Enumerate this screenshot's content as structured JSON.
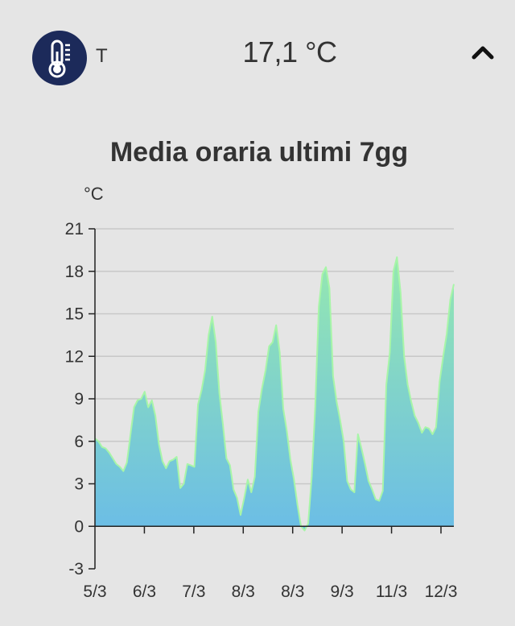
{
  "header": {
    "sensor_icon": "thermometer-icon",
    "sensor_label": "T",
    "current_value": "17,1 °C",
    "collapse_icon": "chevron-up-icon"
  },
  "colors": {
    "avatar_bg": "#1c2a5a",
    "line": "#a8f5a8",
    "fill_top": "#95e8b0",
    "fill_bottom": "#6bbde6",
    "grid": "#c8c8c8",
    "axis": "#222222"
  },
  "chart_data": {
    "type": "area",
    "title": "Media oraria ultimi 7gg",
    "ylabel": "°C",
    "xlabel": "",
    "ylim": [
      -3,
      21
    ],
    "yticks": [
      -3,
      0,
      3,
      6,
      9,
      12,
      15,
      18,
      21
    ],
    "ytick_labels": [
      "-3",
      "0",
      "3",
      "6",
      "9",
      "12",
      "15",
      "18",
      "21"
    ],
    "xtick_labels": [
      "5/3",
      "6/3",
      "7/3",
      "8/3",
      "8/3",
      "9/3",
      "11/3",
      "12/3"
    ],
    "grid": true,
    "series": [
      {
        "values": [
          6.2,
          6.0,
          5.6,
          5.5,
          5.2,
          4.8,
          4.4,
          4.2,
          3.9,
          4.5,
          6.5,
          8.4,
          8.9,
          9.0,
          9.5,
          8.4,
          8.9,
          7.8,
          5.8,
          4.6,
          4.1,
          4.6,
          4.7,
          4.9,
          2.7,
          3.0,
          4.4,
          4.3,
          4.2,
          8.6,
          9.6,
          11.0,
          13.5,
          14.8,
          13.0,
          9.4,
          7.2,
          4.8,
          4.3,
          2.6,
          2.0,
          0.8,
          2.0,
          3.3,
          2.4,
          3.5,
          8.1,
          9.7,
          11.0,
          12.7,
          13.0,
          14.2,
          12.3,
          8.3,
          6.7,
          4.7,
          3.3,
          1.5,
          0.0,
          -0.3,
          0.2,
          3.5,
          8.5,
          15.5,
          17.8,
          18.3,
          16.8,
          10.6,
          8.8,
          7.5,
          6.0,
          3.2,
          2.6,
          2.4,
          6.5,
          5.5,
          4.4,
          3.2,
          2.6,
          1.9,
          1.8,
          2.5,
          10.0,
          12.3,
          18.0,
          19.0,
          16.5,
          12.0,
          10.0,
          8.8,
          7.8,
          7.3,
          6.6,
          7.0,
          6.9,
          6.5,
          7.0,
          10.2,
          12.0,
          13.6,
          16.0,
          17.1
        ]
      }
    ]
  }
}
